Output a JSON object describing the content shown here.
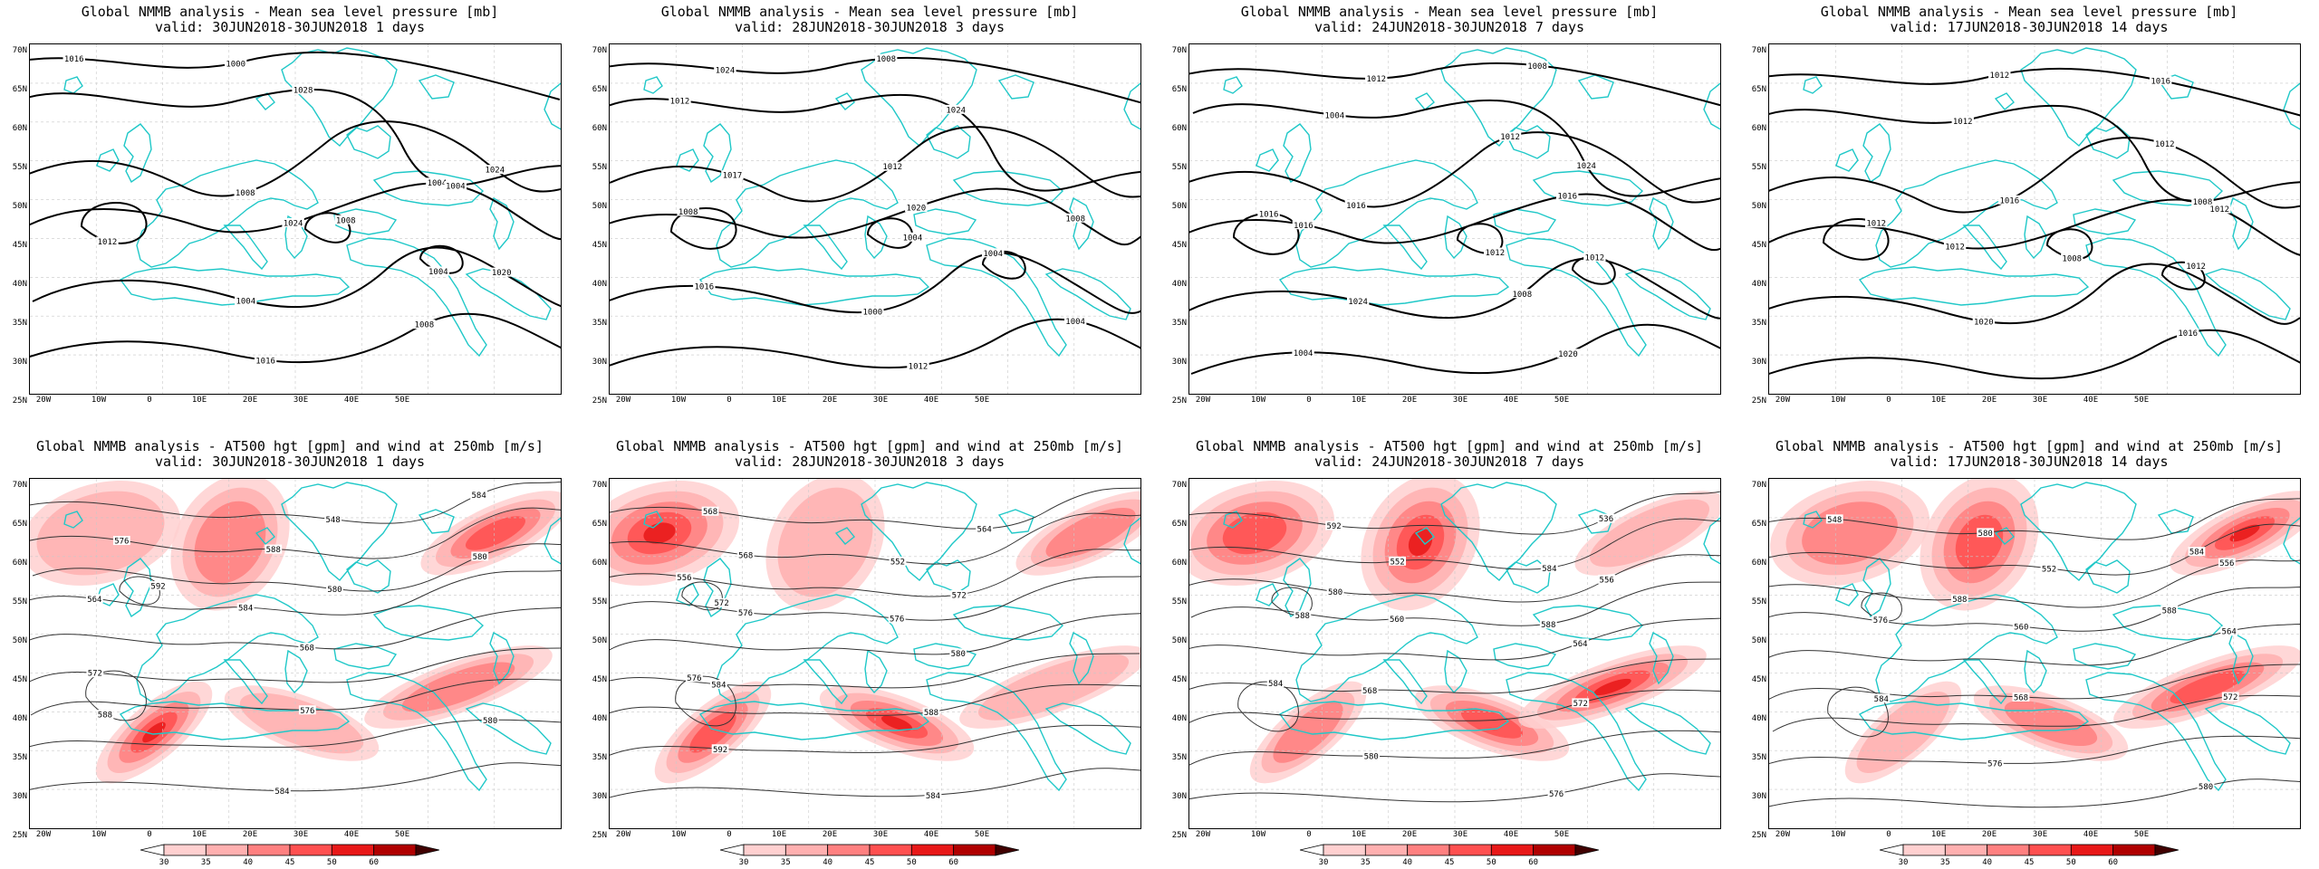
{
  "colors": {
    "coast": "#20c8c8",
    "contour_bold": "#000000",
    "contour_thin": "#333333",
    "grid": "#c8c8c8",
    "wind_30": "#ffd0d0",
    "wind_35": "#ffb0b0",
    "wind_40": "#ff8080",
    "wind_45": "#ff5050",
    "wind_50": "#e81818",
    "wind_60": "#b00000"
  },
  "axes": {
    "lat_labels": [
      "70N",
      "65N",
      "60N",
      "55N",
      "50N",
      "45N",
      "40N",
      "35N",
      "30N",
      "25N"
    ],
    "lon_labels": [
      "20W",
      "10W",
      "0",
      "10E",
      "20E",
      "30E",
      "40E",
      "50E"
    ]
  },
  "colorbar": {
    "labels": [
      "30",
      "35",
      "40",
      "45",
      "50",
      "60"
    ]
  },
  "panels": [
    {
      "title": "Global NMMB analysis - Mean sea level pressure [mb]",
      "subtitle": "valid: 30JUN2018-30JUN2018   1 days",
      "field": "mslp",
      "contour_labels": [
        "1016",
        "1028",
        "1024",
        "1024",
        "1020",
        "1016",
        "1012",
        "1008",
        "1004",
        "1000",
        "1004",
        "1008",
        "1004",
        "1004",
        "1008"
      ]
    },
    {
      "title": "Global NMMB analysis - Mean sea level pressure [mb]",
      "subtitle": "valid: 28JUN2018-30JUN2018   3 days",
      "field": "mslp",
      "contour_labels": [
        "1024",
        "1024",
        "1017",
        "1020",
        "1016",
        "1012",
        "1008",
        "1004",
        "1004",
        "1008",
        "1012",
        "1012",
        "1008",
        "1000",
        "1004"
      ]
    },
    {
      "title": "Global NMMB analysis - Mean sea level pressure [mb]",
      "subtitle": "valid: 24JUN2018-30JUN2018   7 days",
      "field": "mslp",
      "contour_labels": [
        "1012",
        "1024",
        "1016",
        "1016",
        "1024",
        "1020",
        "1016",
        "1012",
        "1012",
        "1008",
        "1004",
        "1012",
        "1016",
        "1008",
        "1004"
      ]
    },
    {
      "title": "Global NMMB analysis - Mean sea level pressure [mb]",
      "subtitle": "valid: 17JUN2018-30JUN2018   14 days",
      "field": "mslp",
      "contour_labels": [
        "1012",
        "1008",
        "1016",
        "1012",
        "1020",
        "1016",
        "1012",
        "1008",
        "1012",
        "1016",
        "1012",
        "1012",
        "1012"
      ]
    },
    {
      "title": "Global NMMB analysis - AT500 hgt [gpm] and wind at 250mb [m/s]",
      "subtitle": "valid: 30JUN2018-30JUN2018   1 days",
      "field": "z500",
      "contour_labels": [
        "548",
        "576",
        "580",
        "564",
        "568",
        "572",
        "576",
        "580",
        "584",
        "588",
        "592",
        "584",
        "588",
        "580",
        "584"
      ]
    },
    {
      "title": "Global NMMB analysis - AT500 hgt [gpm] and wind at 250mb [m/s]",
      "subtitle": "valid: 28JUN2018-30JUN2018   3 days",
      "field": "z500",
      "contour_labels": [
        "564",
        "568",
        "572",
        "576",
        "580",
        "584",
        "588",
        "592",
        "584",
        "576",
        "572",
        "568",
        "552",
        "556",
        "576"
      ]
    },
    {
      "title": "Global NMMB analysis - AT500 hgt [gpm] and wind at 250mb [m/s]",
      "subtitle": "valid: 24JUN2018-30JUN2018   7 days",
      "field": "z500",
      "contour_labels": [
        "536",
        "552",
        "556",
        "560",
        "564",
        "568",
        "572",
        "580",
        "576",
        "584",
        "588",
        "592",
        "584",
        "580",
        "588"
      ]
    },
    {
      "title": "Global NMMB analysis - AT500 hgt [gpm] and wind at 250mb [m/s]",
      "subtitle": "valid: 17JUN2018-30JUN2018   14 days",
      "field": "z500",
      "contour_labels": [
        "548",
        "552",
        "556",
        "560",
        "564",
        "568",
        "572",
        "576",
        "580",
        "584",
        "576",
        "580",
        "584",
        "588",
        "588"
      ]
    }
  ]
}
